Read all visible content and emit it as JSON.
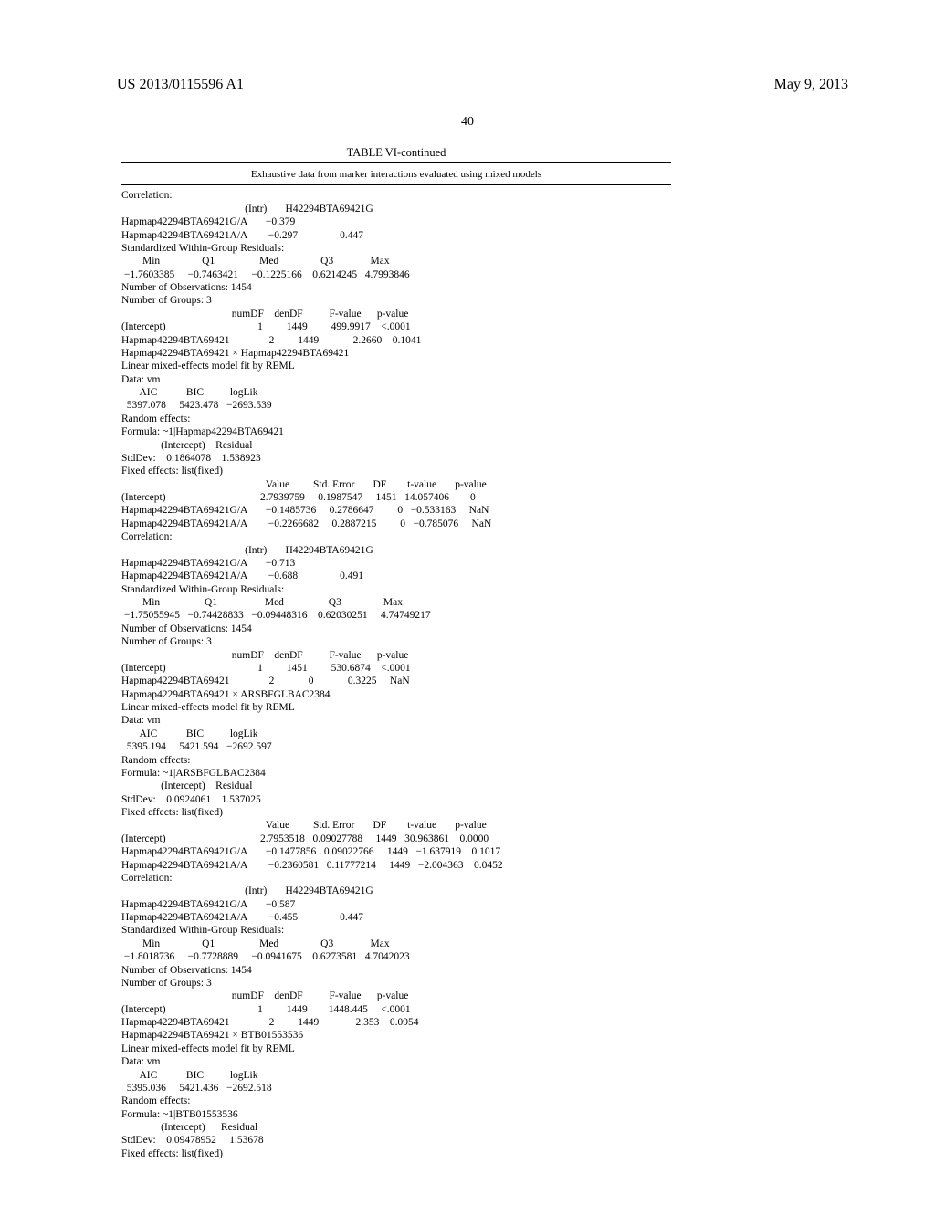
{
  "header": {
    "publication": "US 2013/0115596 A1",
    "date": "May 9, 2013"
  },
  "page_number": "40",
  "table": {
    "title": "TABLE VI-continued",
    "subtitle": "Exhaustive data from marker interactions evaluated using mixed models"
  },
  "body": "Correlation:\n                                               (Intr)       H42294BTA69421G\nHapmap42294BTA69421G/A       −0.379\nHapmap42294BTA69421A/A        −0.297                0.447\nStandardized Within-Group Residuals:\n        Min                Q1                 Med                Q3              Max\n −1.7603385     −0.7463421     −0.1225166    0.6214245   4.7993846\nNumber of Observations: 1454\nNumber of Groups: 3\n                                          numDF    denDF          F-value      p-value\n(Intercept)                                   1         1449         499.9917    <.0001\nHapmap42294BTA69421               2         1449             2.2660    0.1041\nHapmap42294BTA69421 × Hapmap42294BTA69421\nLinear mixed-effects model fit by REML\nData: vm\n       AIC           BIC          logLik\n  5397.078     5423.478   −2693.539\nRandom effects:\nFormula: ~1|Hapmap42294BTA69421\n               (Intercept)    Residual\nStdDev:    0.1864078    1.538923\nFixed effects: list(fixed)\n                                                       Value         Std. Error       DF        t-value       p-value\n(Intercept)                                    2.7939759     0.1987547     1451   14.057406        0\nHapmap42294BTA69421G/A       −0.1485736     0.2786647         0   −0.533163     NaN\nHapmap42294BTA69421A/A        −0.2266682     0.2887215         0   −0.785076     NaN\nCorrelation:\n                                               (Intr)       H42294BTA69421G\nHapmap42294BTA69421G/A       −0.713\nHapmap42294BTA69421A/A        −0.688                0.491\nStandardized Within-Group Residuals:\n        Min                 Q1                  Med                 Q3                Max\n −1.75055945   −0.74428833   −0.09448316    0.62030251     4.74749217\nNumber of Observations: 1454\nNumber of Groups: 3\n                                          numDF    denDF          F-value      p-value\n(Intercept)                                   1         1451         530.6874    <.0001\nHapmap42294BTA69421               2             0             0.3225     NaN\nHapmap42294BTA69421 × ARSBFGLBAC2384\nLinear mixed-effects model fit by REML\nData: vm\n       AIC           BIC          logLik\n  5395.194     5421.594   −2692.597\nRandom effects:\nFormula: ~1|ARSBFGLBAC2384\n               (Intercept)    Residual\nStdDev:    0.0924061    1.537025\nFixed effects: list(fixed)\n                                                       Value         Std. Error       DF        t-value       p-value\n(Intercept)                                    2.7953518   0.09027788     1449   30.963861    0.0000\nHapmap42294BTA69421G/A       −0.1477856   0.09022766     1449   −1.637919    0.1017\nHapmap42294BTA69421A/A        −0.2360581   0.11777214     1449   −2.004363    0.0452\nCorrelation:\n                                               (Intr)       H42294BTA69421G\nHapmap42294BTA69421G/A       −0.587\nHapmap42294BTA69421A/A        −0.455                0.447\nStandardized Within-Group Residuals:\n        Min                Q1                 Med                Q3              Max\n −1.8018736     −0.7728889     −0.0941675    0.6273581   4.7042023\nNumber of Observations: 1454\nNumber of Groups: 3\n                                          numDF    denDF          F-value      p-value\n(Intercept)                                   1         1449        1448.445     <.0001\nHapmap42294BTA69421               2         1449              2.353    0.0954\nHapmap42294BTA69421 × BTB01553536\nLinear mixed-effects model fit by REML\nData: vm\n       AIC           BIC          logLik\n  5395.036     5421.436   −2692.518\nRandom effects:\nFormula: ~1|BTB01553536\n               (Intercept)      Residual\nStdDev:    0.09478952     1.53678\nFixed effects: list(fixed)"
}
